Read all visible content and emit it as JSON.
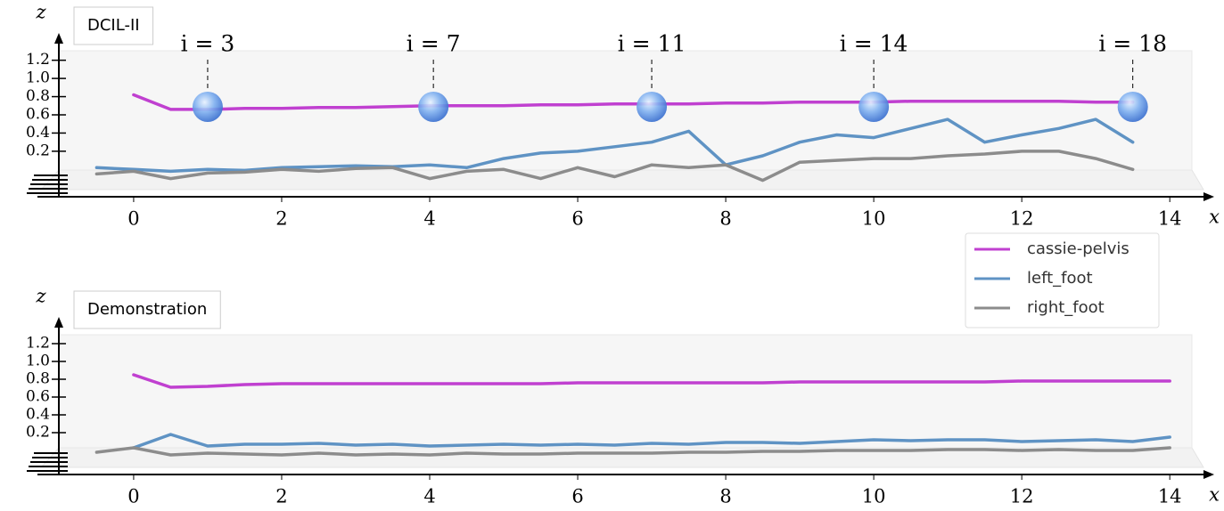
{
  "chart_data": [
    {
      "type": "line",
      "title": "DCIL-II",
      "x_label": "x",
      "y_label": "z",
      "xlim": [
        -1.3,
        14.6
      ],
      "ylim": [
        -0.3,
        1.5
      ],
      "xticks": [
        0,
        2,
        4,
        6,
        8,
        10,
        12,
        14
      ],
      "yticks": [
        0.2,
        0.4,
        0.6,
        0.8,
        {
          "value": 1,
          "label": "1.0"
        },
        1.2
      ],
      "legend": "right",
      "annotations": [
        {
          "text": "i = 3",
          "x": 1
        },
        {
          "text": "i = 7",
          "x": 4.05
        },
        {
          "text": "i = 11",
          "x": 7
        },
        {
          "text": "i = 14",
          "x": 10
        },
        {
          "text": "i = 18",
          "x": 13.5
        }
      ],
      "x": [
        -0.5,
        0,
        0.5,
        1,
        1.5,
        2,
        2.5,
        3,
        3.5,
        4,
        4.5,
        5,
        5.5,
        6,
        6.5,
        7,
        7.5,
        8,
        8.5,
        9,
        9.5,
        10,
        10.5,
        11,
        11.5,
        12,
        12.5,
        13,
        13.5,
        14
      ],
      "series": [
        {
          "name": "cassie-pelvis",
          "color": "#c040d0",
          "values": [
            null,
            0.82,
            0.66,
            0.66,
            0.67,
            0.67,
            0.68,
            0.68,
            0.69,
            0.7,
            0.7,
            0.7,
            0.71,
            0.71,
            0.72,
            0.72,
            0.72,
            0.73,
            0.73,
            0.74,
            0.74,
            0.74,
            0.75,
            0.75,
            0.75,
            0.75,
            0.75,
            0.74,
            0.74,
            null
          ]
        },
        {
          "name": "left_foot",
          "color": "#5f93c4",
          "values": [
            0.02,
            0,
            -0.02,
            0,
            -0.01,
            0.02,
            0.03,
            0.04,
            0.03,
            0.05,
            0.02,
            0.12,
            0.18,
            0.2,
            0.25,
            0.3,
            0.42,
            0.05,
            0.15,
            0.3,
            0.38,
            0.35,
            0.45,
            0.55,
            0.3,
            0.38,
            0.45,
            0.55,
            0.3,
            null
          ]
        },
        {
          "name": "right_foot",
          "color": "#8c8c8c",
          "values": [
            -0.05,
            -0.02,
            -0.1,
            -0.04,
            -0.03,
            0,
            -0.02,
            0.01,
            0.02,
            -0.1,
            -0.02,
            0,
            -0.1,
            0.02,
            -0.08,
            0.05,
            0.02,
            0.05,
            -0.12,
            0.08,
            0.1,
            0.12,
            0.12,
            0.15,
            0.17,
            0.2,
            0.2,
            0.12,
            0,
            null
          ]
        }
      ]
    },
    {
      "type": "line",
      "title": "Demonstration",
      "x_label": "x",
      "y_label": "z",
      "xlim": [
        -1.3,
        14.6
      ],
      "ylim": [
        -0.27,
        1.5
      ],
      "xticks": [
        0,
        2,
        4,
        6,
        8,
        10,
        12,
        14
      ],
      "yticks": [
        0.2,
        0.4,
        0.6,
        0.8,
        {
          "value": 1,
          "label": "1.0"
        },
        1.2
      ],
      "x": [
        -0.5,
        0,
        0.5,
        1,
        1.5,
        2,
        2.5,
        3,
        3.5,
        4,
        4.5,
        5,
        5.5,
        6,
        6.5,
        7,
        7.5,
        8,
        8.5,
        9,
        9.5,
        10,
        10.5,
        11,
        11.5,
        12,
        12.5,
        13,
        13.5,
        14
      ],
      "series": [
        {
          "name": "cassie-pelvis",
          "color": "#c040d0",
          "values": [
            null,
            0.85,
            0.71,
            0.72,
            0.74,
            0.75,
            0.75,
            0.75,
            0.75,
            0.75,
            0.75,
            0.75,
            0.75,
            0.76,
            0.76,
            0.76,
            0.76,
            0.76,
            0.76,
            0.77,
            0.77,
            0.77,
            0.77,
            0.77,
            0.77,
            0.78,
            0.78,
            0.78,
            0.78,
            0.78
          ]
        },
        {
          "name": "left_foot",
          "color": "#5f93c4",
          "values": [
            null,
            0.03,
            0.18,
            0.05,
            0.07,
            0.07,
            0.08,
            0.06,
            0.07,
            0.05,
            0.06,
            0.07,
            0.06,
            0.07,
            0.06,
            0.08,
            0.07,
            0.09,
            0.09,
            0.08,
            0.1,
            0.12,
            0.11,
            0.12,
            0.12,
            0.1,
            0.11,
            0.12,
            0.1,
            0.15
          ]
        },
        {
          "name": "right_foot",
          "color": "#8c8c8c",
          "values": [
            -0.02,
            0.03,
            -0.05,
            -0.03,
            -0.04,
            -0.05,
            -0.03,
            -0.05,
            -0.04,
            -0.05,
            -0.03,
            -0.04,
            -0.04,
            -0.03,
            -0.03,
            -0.03,
            -0.02,
            -0.02,
            -0.01,
            -0.01,
            0,
            0,
            0,
            0.01,
            0.01,
            0,
            0.01,
            0,
            0,
            0.03
          ]
        }
      ]
    }
  ]
}
